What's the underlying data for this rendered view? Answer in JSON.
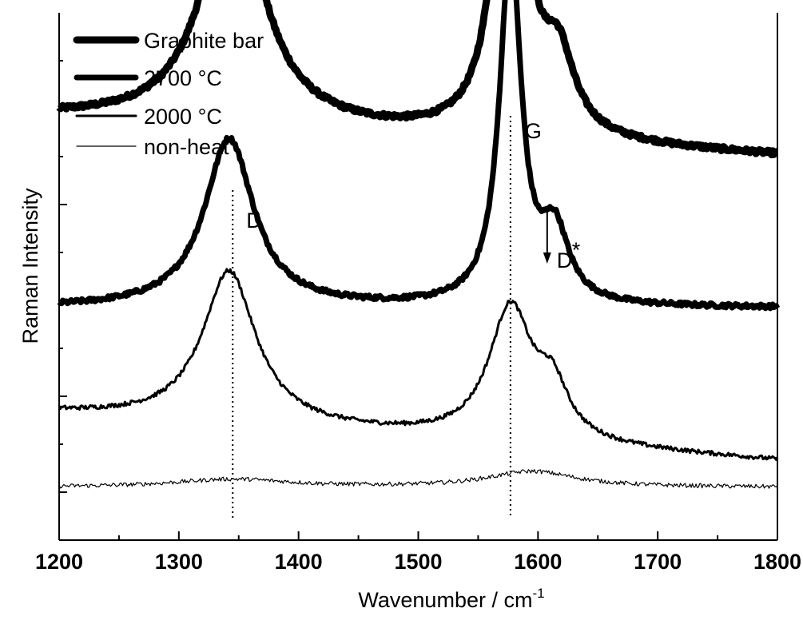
{
  "chart_data": {
    "type": "line",
    "title": "",
    "xlabel": "Wavenumber / cm",
    "xlabel_superscript": "-1",
    "ylabel": "Raman Intensity",
    "xlim": [
      1200,
      1800
    ],
    "x_ticks": [
      "1200",
      "1300",
      "1400",
      "1500",
      "1600",
      "1700",
      "1800"
    ],
    "y_tick_labels": false,
    "grid": false,
    "legend": "top-left",
    "series": [
      {
        "name": "Graphite bar",
        "color": "#000000",
        "line_weight": "heaviest",
        "baseline": 0.8,
        "d_peak": 0.45,
        "d_center": 1345,
        "d_width": 30,
        "g_peak": 0.84,
        "g_center": 1577,
        "g_width": 13,
        "dstar_peak": 0.14,
        "dstar_center": 1617,
        "dstar_width": 16,
        "slope": -0.00012
      },
      {
        "name": "2700 °C",
        "color": "#000000",
        "line_weight": "heavy",
        "baseline": 0.44,
        "d_peak": 0.32,
        "d_center": 1342,
        "d_width": 25,
        "g_peak": 0.67,
        "g_center": 1577,
        "g_width": 11,
        "dstar_peak": 0.13,
        "dstar_center": 1614,
        "dstar_width": 14,
        "slope": 0.0
      },
      {
        "name": "2000 °C",
        "color": "#000000",
        "line_weight": "medium",
        "baseline": 0.24,
        "d_peak": 0.29,
        "d_center": 1342,
        "d_width": 27,
        "g_peak": 0.25,
        "g_center": 1577,
        "g_width": 22,
        "dstar_peak": 0.09,
        "dstar_center": 1612,
        "dstar_width": 16,
        "slope": -0.00015
      },
      {
        "name": "non-heat",
        "color": "#000000",
        "line_weight": "thin",
        "baseline": 0.1,
        "d_peak": 0.015,
        "d_center": 1345,
        "d_width": 60,
        "g_peak": 0.03,
        "g_center": 1595,
        "g_width": 45,
        "dstar_peak": 0.0,
        "dstar_center": 1617,
        "dstar_width": 16,
        "slope": 0.0
      }
    ],
    "annotations": [
      {
        "label": "D",
        "x": 1345,
        "type": "dotted-vline"
      },
      {
        "label": "G",
        "x": 1577,
        "type": "dotted-vline"
      },
      {
        "label": "D",
        "superscript": "*",
        "x": 1615,
        "type": "arrow-down"
      }
    ]
  }
}
